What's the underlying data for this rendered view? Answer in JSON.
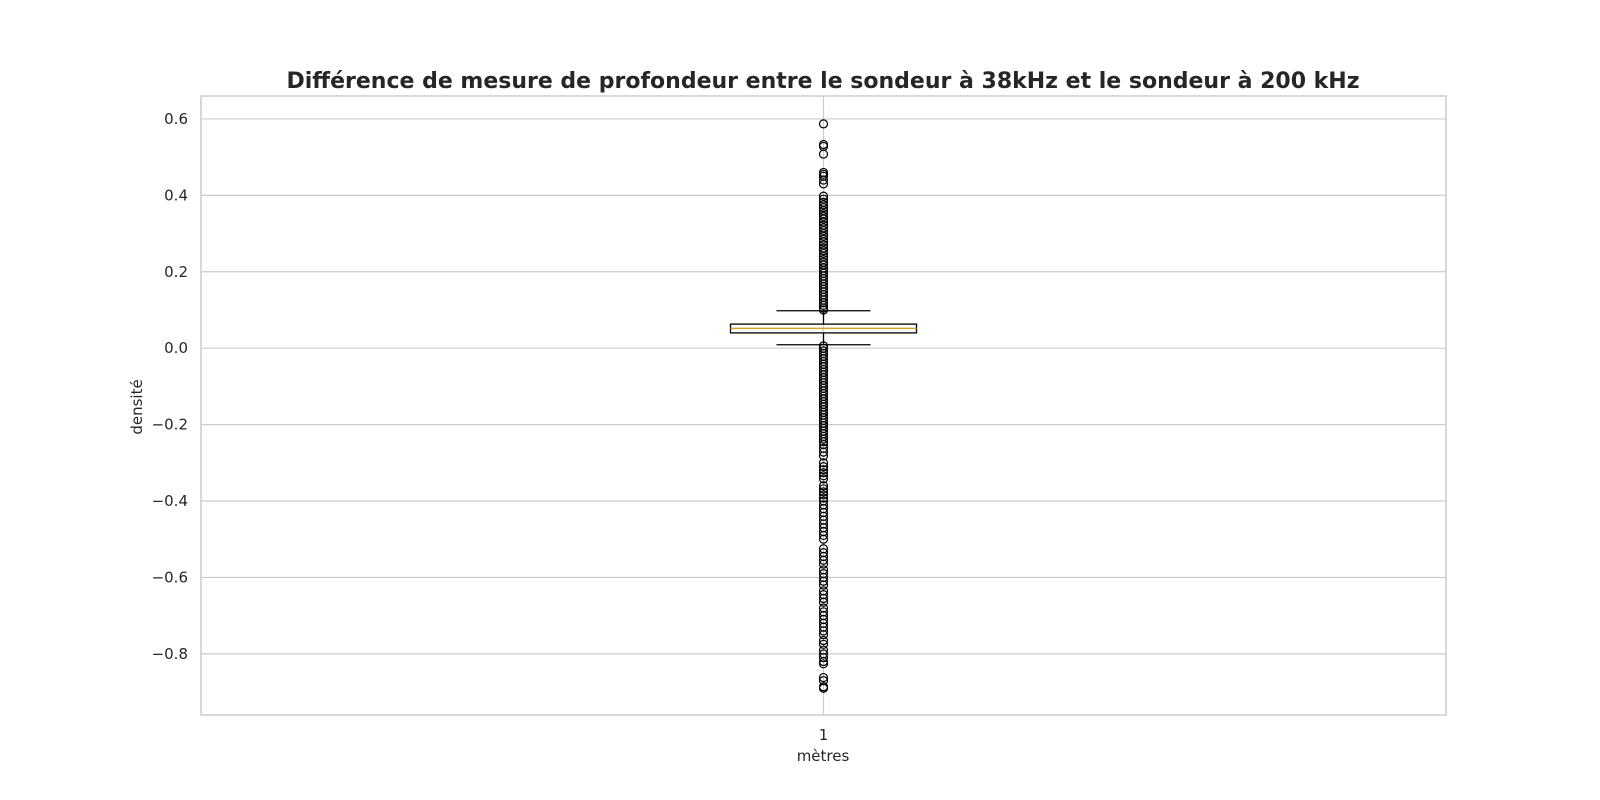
{
  "chart_data": {
    "type": "box",
    "title": "Différence de mesure de profondeur entre le sondeur à 38kHz et le sondeur à 200 kHz",
    "xlabel": "mètres",
    "ylabel": "densité",
    "categories": [
      "1"
    ],
    "ylim": [
      -0.96,
      0.66
    ],
    "yticks": [
      0.6,
      0.4,
      0.2,
      0.0,
      -0.2,
      -0.4,
      -0.6,
      -0.8
    ],
    "ytick_labels": [
      "0.6",
      "0.4",
      "0.2",
      "0.0",
      "−0.2",
      "−0.4",
      "−0.6",
      "−0.8"
    ],
    "grid": true,
    "boxes": [
      {
        "category": "1",
        "q1": 0.04,
        "median": 0.052,
        "q3": 0.063,
        "whisker_low": 0.009,
        "whisker_high": 0.098,
        "outliers": [
          0.587,
          0.533,
          0.528,
          0.508,
          0.46,
          0.455,
          0.45,
          0.44,
          0.43,
          0.398,
          0.39,
          0.382,
          0.375,
          0.368,
          0.36,
          0.352,
          0.345,
          0.338,
          0.33,
          0.322,
          0.315,
          0.308,
          0.3,
          0.293,
          0.285,
          0.278,
          0.27,
          0.262,
          0.255,
          0.248,
          0.24,
          0.232,
          0.225,
          0.218,
          0.21,
          0.203,
          0.196,
          0.189,
          0.182,
          0.175,
          0.168,
          0.161,
          0.154,
          0.147,
          0.14,
          0.133,
          0.126,
          0.119,
          0.112,
          0.105,
          0.1,
          0.006,
          0.0,
          -0.007,
          -0.014,
          -0.021,
          -0.028,
          -0.035,
          -0.042,
          -0.049,
          -0.056,
          -0.063,
          -0.07,
          -0.077,
          -0.084,
          -0.091,
          -0.098,
          -0.105,
          -0.112,
          -0.119,
          -0.126,
          -0.133,
          -0.14,
          -0.147,
          -0.154,
          -0.161,
          -0.168,
          -0.175,
          -0.182,
          -0.189,
          -0.196,
          -0.203,
          -0.21,
          -0.217,
          -0.224,
          -0.231,
          -0.238,
          -0.245,
          -0.252,
          -0.262,
          -0.272,
          -0.282,
          -0.3,
          -0.31,
          -0.318,
          -0.326,
          -0.334,
          -0.342,
          -0.36,
          -0.368,
          -0.376,
          -0.384,
          -0.392,
          -0.4,
          -0.41,
          -0.42,
          -0.43,
          -0.44,
          -0.45,
          -0.46,
          -0.47,
          -0.48,
          -0.49,
          -0.5,
          -0.525,
          -0.535,
          -0.545,
          -0.555,
          -0.565,
          -0.58,
          -0.59,
          -0.6,
          -0.61,
          -0.62,
          -0.635,
          -0.645,
          -0.655,
          -0.665,
          -0.68,
          -0.69,
          -0.7,
          -0.71,
          -0.72,
          -0.73,
          -0.74,
          -0.75,
          -0.765,
          -0.775,
          -0.79,
          -0.8,
          -0.81,
          -0.82,
          -0.826,
          -0.862,
          -0.87,
          -0.886,
          -0.89
        ]
      }
    ],
    "colors": {
      "box_edge": "#000000",
      "median": "#d9a32e",
      "grid": "#cccccc",
      "frame": "#cccccc",
      "text": "#262626"
    }
  }
}
